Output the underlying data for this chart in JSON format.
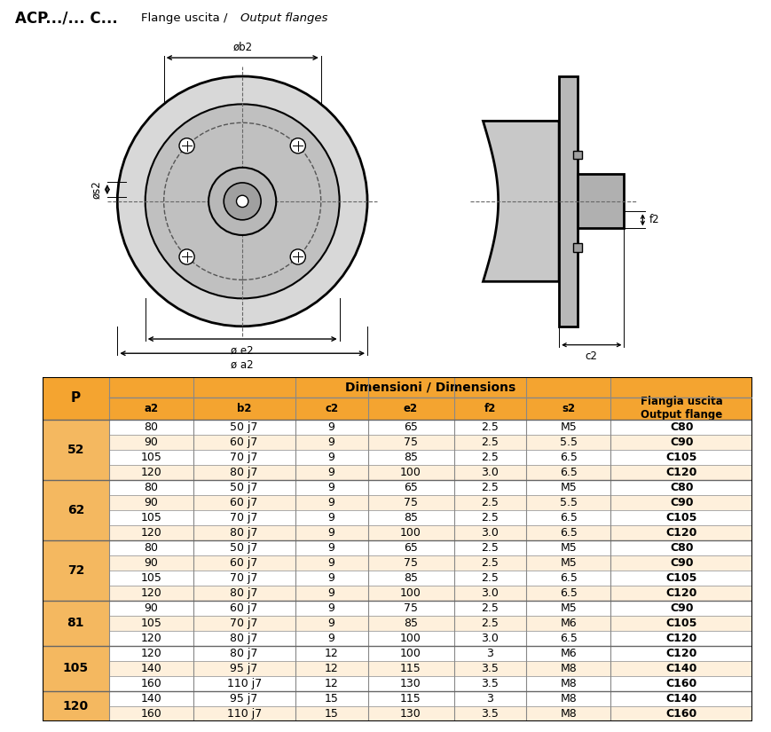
{
  "title_bold": "ACP.../... C...",
  "title_normal": "Flange uscita / ",
  "title_italic": "Output flanges",
  "table_header_bg": "#F4A430",
  "table_header_bg2": "#F4B860",
  "table_row_bg1": "#FFFFFF",
  "table_row_bg2": "#FEF0DC",
  "table_border": "#999999",
  "col_header_P": "P",
  "col_headers": [
    "a2",
    "b2",
    "c2",
    "e2",
    "f2",
    "s2",
    "Flangia uscita\nOutput flange"
  ],
  "dim_header": "Dimensioni / Dimensions",
  "groups": [
    {
      "p": "52",
      "rows": [
        [
          "80",
          "50 j7",
          "9",
          "65",
          "2.5",
          "M5",
          "C80"
        ],
        [
          "90",
          "60 j7",
          "9",
          "75",
          "2.5",
          "5.5",
          "C90"
        ],
        [
          "105",
          "70 j7",
          "9",
          "85",
          "2.5",
          "6.5",
          "C105"
        ],
        [
          "120",
          "80 j7",
          "9",
          "100",
          "3.0",
          "6.5",
          "C120"
        ]
      ]
    },
    {
      "p": "62",
      "rows": [
        [
          "80",
          "50 j7",
          "9",
          "65",
          "2.5",
          "M5",
          "C80"
        ],
        [
          "90",
          "60 j7",
          "9",
          "75",
          "2.5",
          "5.5",
          "C90"
        ],
        [
          "105",
          "70 j7",
          "9",
          "85",
          "2.5",
          "6.5",
          "C105"
        ],
        [
          "120",
          "80 j7",
          "9",
          "100",
          "3.0",
          "6.5",
          "C120"
        ]
      ]
    },
    {
      "p": "72",
      "rows": [
        [
          "80",
          "50 j7",
          "9",
          "65",
          "2.5",
          "M5",
          "C80"
        ],
        [
          "90",
          "60 j7",
          "9",
          "75",
          "2.5",
          "M5",
          "C90"
        ],
        [
          "105",
          "70 j7",
          "9",
          "85",
          "2.5",
          "6.5",
          "C105"
        ],
        [
          "120",
          "80 j7",
          "9",
          "100",
          "3.0",
          "6.5",
          "C120"
        ]
      ]
    },
    {
      "p": "81",
      "rows": [
        [
          "90",
          "60 j7",
          "9",
          "75",
          "2.5",
          "M5",
          "C90"
        ],
        [
          "105",
          "70 j7",
          "9",
          "85",
          "2.5",
          "M6",
          "C105"
        ],
        [
          "120",
          "80 j7",
          "9",
          "100",
          "3.0",
          "6.5",
          "C120"
        ]
      ]
    },
    {
      "p": "105",
      "rows": [
        [
          "120",
          "80 j7",
          "12",
          "100",
          "3",
          "M6",
          "C120"
        ],
        [
          "140",
          "95 j7",
          "12",
          "115",
          "3.5",
          "M8",
          "C140"
        ],
        [
          "160",
          "110 j7",
          "12",
          "130",
          "3.5",
          "M8",
          "C160"
        ]
      ]
    },
    {
      "p": "120",
      "rows": [
        [
          "140",
          "95 j7",
          "15",
          "115",
          "3",
          "M8",
          "C140"
        ],
        [
          "160",
          "110 j7",
          "15",
          "130",
          "3.5",
          "M8",
          "C160"
        ]
      ]
    }
  ],
  "bg_color": "#FFFFFF"
}
